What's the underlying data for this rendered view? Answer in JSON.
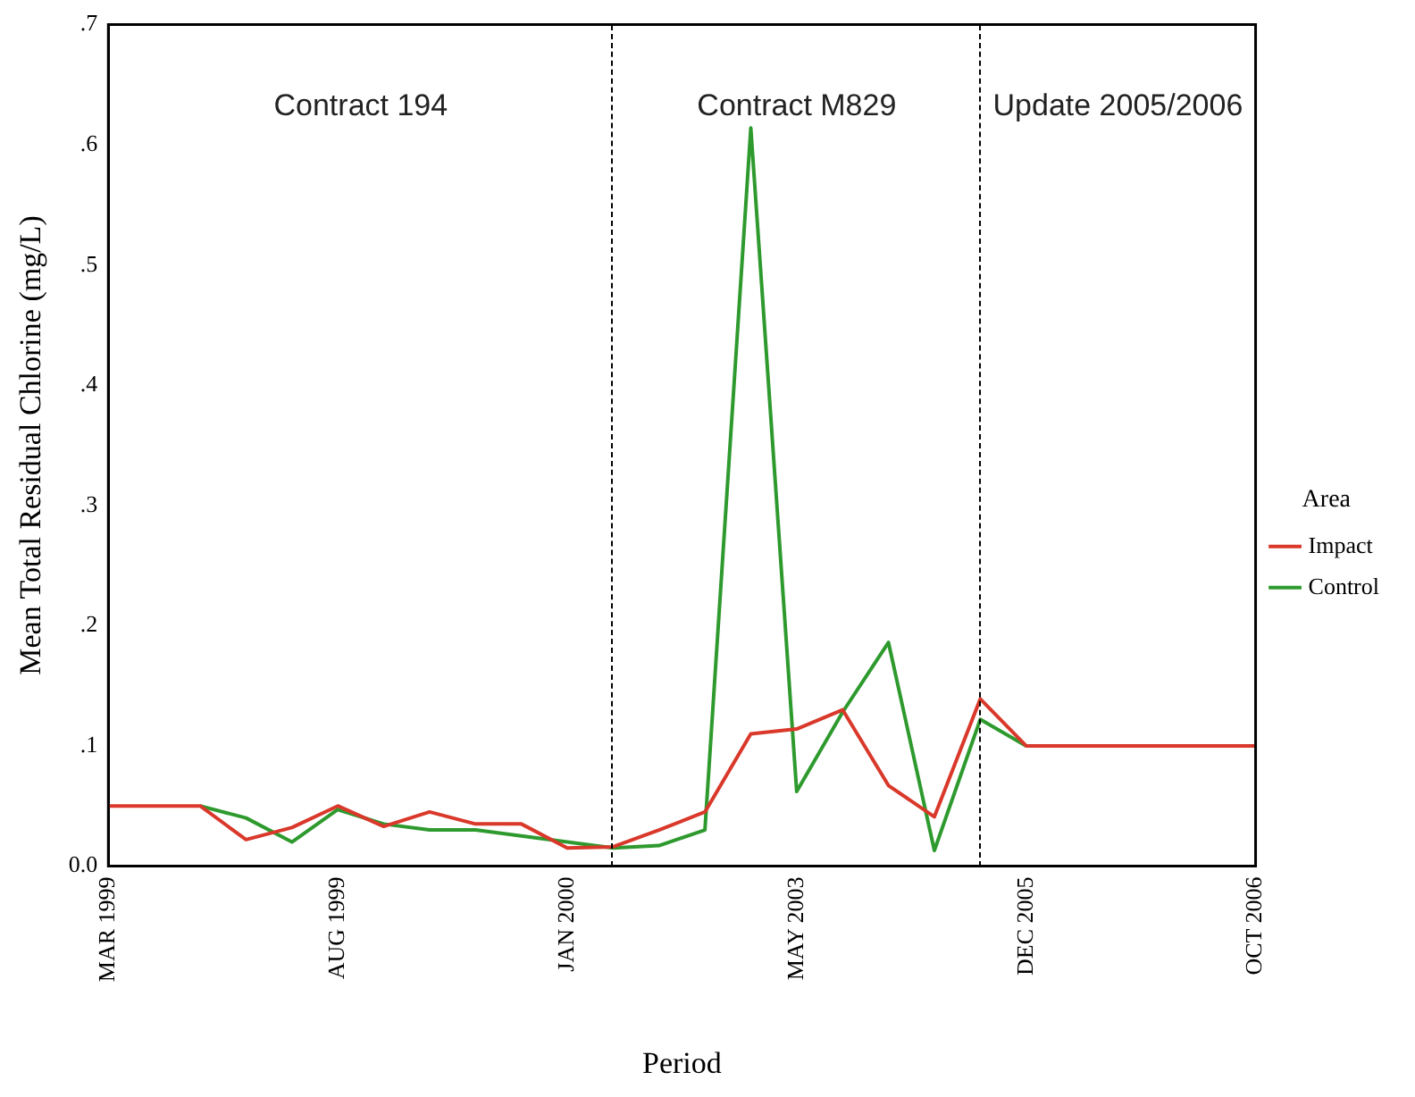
{
  "chart_data": {
    "type": "line",
    "xlabel": "Period",
    "ylabel": "Mean Total Residual Chlorine (mg/L)",
    "categories": [
      "MAR 1999",
      null,
      null,
      null,
      null,
      "AUG 1999",
      null,
      null,
      null,
      null,
      "JAN 2000",
      null,
      null,
      null,
      null,
      "MAY 2003",
      null,
      null,
      null,
      null,
      "DEC 2005",
      null,
      null,
      null,
      null,
      "OCT 2006"
    ],
    "ylim": [
      0,
      0.7
    ],
    "yticks": [
      {
        "value": 0,
        "label": "0.0"
      },
      {
        "value": 0.1,
        "label": ".1"
      },
      {
        "value": 0.2,
        "label": ".2"
      },
      {
        "value": 0.3,
        "label": ".3"
      },
      {
        "value": 0.4,
        "label": ".4"
      },
      {
        "value": 0.5,
        "label": ".5"
      },
      {
        "value": 0.6,
        "label": ".6"
      },
      {
        "value": 0.7,
        "label": ".7"
      }
    ],
    "legend_title": "Area",
    "legend": "right",
    "marker": "none",
    "series": [
      {
        "name": "Impact",
        "color": "#d9382a",
        "values": [
          0.05,
          0.05,
          0.05,
          0.022,
          0.032,
          0.05,
          0.033,
          0.045,
          0.035,
          0.035,
          0.015,
          0.016,
          0.03,
          0.045,
          0.11,
          0.114,
          0.13,
          0.067,
          0.041,
          0.139,
          0.1,
          0.1,
          0.1,
          0.1,
          0.1,
          0.1
        ]
      },
      {
        "name": "Control",
        "color": "#2e9a2e",
        "values": [
          null,
          null,
          0.05,
          0.04,
          0.02,
          0.047,
          0.035,
          0.03,
          0.03,
          0.025,
          0.02,
          0.015,
          0.017,
          0.03,
          0.614,
          0.062,
          0.128,
          0.186,
          0.013,
          0.122,
          0.1,
          null,
          null,
          null,
          null,
          null
        ]
      }
    ],
    "annotations": [
      "Contract 194",
      "Contract M829",
      "Update 2005/2006"
    ]
  }
}
